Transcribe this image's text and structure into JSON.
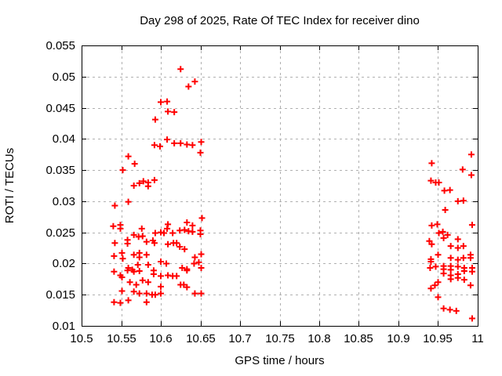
{
  "chart_data": {
    "type": "scatter",
    "title": "Day 298 of 2025, Rate Of TEC Index for receiver dino",
    "xlabel": "GPS time / hours",
    "ylabel": "ROTI / TECUs",
    "xlim": [
      10.5,
      11
    ],
    "ylim": [
      0.01,
      0.055
    ],
    "xticks": {
      "values": [
        10.5,
        10.55,
        10.6,
        10.65,
        10.7,
        10.75,
        10.8,
        10.85,
        10.9,
        10.95,
        11
      ],
      "labels": [
        "10.5",
        "10.55",
        "10.6",
        "10.65",
        "10.7",
        "10.75",
        "10.8",
        "10.85",
        "10.9",
        "10.95",
        "11"
      ]
    },
    "yticks": {
      "values": [
        0.01,
        0.015,
        0.02,
        0.025,
        0.03,
        0.035,
        0.04,
        0.045,
        0.05,
        0.055
      ],
      "labels": [
        "0.01",
        "0.015",
        "0.02",
        "0.025",
        "0.03",
        "0.035",
        "0.04",
        "0.045",
        "0.05",
        "0.055"
      ]
    },
    "grid": {
      "visible": true,
      "style": "dashed",
      "color": "#b0b0b0"
    },
    "legend": {
      "visible": false
    },
    "background": "#ffffff",
    "axis_color": "#000000",
    "series": [
      {
        "name": "ROTI",
        "marker": "plus",
        "color": "#ff0000",
        "points": [
          [
            10.625,
            0.0512
          ],
          [
            10.643,
            0.0492
          ],
          [
            10.635,
            0.0484
          ],
          [
            10.6,
            0.0459
          ],
          [
            10.608,
            0.046
          ],
          [
            10.609,
            0.0444
          ],
          [
            10.617,
            0.0443
          ],
          [
            10.593,
            0.0431
          ],
          [
            10.608,
            0.0399
          ],
          [
            10.599,
            0.0388
          ],
          [
            10.592,
            0.039
          ],
          [
            10.617,
            0.0393
          ],
          [
            10.625,
            0.0393
          ],
          [
            10.633,
            0.0391
          ],
          [
            10.64,
            0.039
          ],
          [
            10.651,
            0.0395
          ],
          [
            10.65,
            0.0378
          ],
          [
            10.559,
            0.0372
          ],
          [
            10.567,
            0.036
          ],
          [
            10.552,
            0.035
          ],
          [
            10.566,
            0.0325
          ],
          [
            10.573,
            0.0329
          ],
          [
            10.578,
            0.0332
          ],
          [
            10.584,
            0.033
          ],
          [
            10.584,
            0.0324
          ],
          [
            10.592,
            0.0334
          ],
          [
            10.559,
            0.0299
          ],
          [
            10.542,
            0.0293
          ],
          [
            10.54,
            0.026
          ],
          [
            10.549,
            0.0262
          ],
          [
            10.549,
            0.0256
          ],
          [
            10.576,
            0.0256
          ],
          [
            10.566,
            0.0246
          ],
          [
            10.59,
            0.0237
          ],
          [
            10.593,
            0.0249
          ],
          [
            10.6,
            0.025
          ],
          [
            10.604,
            0.0249
          ],
          [
            10.609,
            0.0263
          ],
          [
            10.608,
            0.0256
          ],
          [
            10.615,
            0.0249
          ],
          [
            10.624,
            0.0253
          ],
          [
            10.63,
            0.0254
          ],
          [
            10.635,
            0.0252
          ],
          [
            10.633,
            0.0266
          ],
          [
            10.64,
            0.0261
          ],
          [
            10.64,
            0.0251
          ],
          [
            10.652,
            0.0273
          ],
          [
            10.65,
            0.0253
          ],
          [
            10.65,
            0.0247
          ],
          [
            10.542,
            0.0233
          ],
          [
            10.558,
            0.0238
          ],
          [
            10.558,
            0.0232
          ],
          [
            10.572,
            0.0243
          ],
          [
            10.577,
            0.0244
          ],
          [
            10.582,
            0.0235
          ],
          [
            10.592,
            0.0233
          ],
          [
            10.609,
            0.0231
          ],
          [
            10.616,
            0.0233
          ],
          [
            10.62,
            0.0233
          ],
          [
            10.624,
            0.0227
          ],
          [
            10.63,
            0.0223
          ],
          [
            10.541,
            0.0212
          ],
          [
            10.551,
            0.0217
          ],
          [
            10.552,
            0.0208
          ],
          [
            10.566,
            0.0214
          ],
          [
            10.573,
            0.0217
          ],
          [
            10.573,
            0.021
          ],
          [
            10.582,
            0.0214
          ],
          [
            10.643,
            0.021
          ],
          [
            10.651,
            0.0215
          ],
          [
            10.559,
            0.0193
          ],
          [
            10.564,
            0.019
          ],
          [
            10.571,
            0.0198
          ],
          [
            10.584,
            0.0198
          ],
          [
            10.6,
            0.0203
          ],
          [
            10.607,
            0.02
          ],
          [
            10.627,
            0.0193
          ],
          [
            10.633,
            0.0191
          ],
          [
            10.642,
            0.02
          ],
          [
            10.648,
            0.0202
          ],
          [
            10.651,
            0.0193
          ],
          [
            10.541,
            0.0187
          ],
          [
            10.549,
            0.0181
          ],
          [
            10.551,
            0.0178
          ],
          [
            10.558,
            0.0189
          ],
          [
            10.566,
            0.0187
          ],
          [
            10.573,
            0.0188
          ],
          [
            10.591,
            0.0189
          ],
          [
            10.591,
            0.0183
          ],
          [
            10.6,
            0.018
          ],
          [
            10.609,
            0.0181
          ],
          [
            10.615,
            0.018
          ],
          [
            10.62,
            0.018
          ],
          [
            10.633,
            0.0189
          ],
          [
            10.561,
            0.017
          ],
          [
            10.569,
            0.0166
          ],
          [
            10.577,
            0.0173
          ],
          [
            10.584,
            0.017
          ],
          [
            10.6,
            0.0163
          ],
          [
            10.625,
            0.0166
          ],
          [
            10.629,
            0.0166
          ],
          [
            10.633,
            0.0162
          ],
          [
            10.551,
            0.0156
          ],
          [
            10.566,
            0.0155
          ],
          [
            10.573,
            0.0152
          ],
          [
            10.582,
            0.0152
          ],
          [
            10.589,
            0.015
          ],
          [
            10.593,
            0.015
          ],
          [
            10.6,
            0.0152
          ],
          [
            10.643,
            0.0152
          ],
          [
            10.651,
            0.0152
          ],
          [
            10.541,
            0.0138
          ],
          [
            10.549,
            0.0137
          ],
          [
            10.559,
            0.0141
          ],
          [
            10.582,
            0.0138
          ],
          [
            10.992,
            0.0375
          ],
          [
            10.942,
            0.0361
          ],
          [
            10.981,
            0.0351
          ],
          [
            10.992,
            0.0342
          ],
          [
            10.941,
            0.0333
          ],
          [
            10.947,
            0.033
          ],
          [
            10.951,
            0.033
          ],
          [
            10.958,
            0.0317
          ],
          [
            10.965,
            0.0318
          ],
          [
            10.975,
            0.03
          ],
          [
            10.982,
            0.0301
          ],
          [
            10.959,
            0.0286
          ],
          [
            10.942,
            0.0261
          ],
          [
            10.949,
            0.0263
          ],
          [
            10.993,
            0.0262
          ],
          [
            10.951,
            0.0249
          ],
          [
            10.956,
            0.0251
          ],
          [
            10.962,
            0.0246
          ],
          [
            10.957,
            0.0241
          ],
          [
            10.975,
            0.0239
          ],
          [
            10.939,
            0.0236
          ],
          [
            10.942,
            0.0231
          ],
          [
            10.966,
            0.0228
          ],
          [
            10.975,
            0.0225
          ],
          [
            10.982,
            0.0228
          ],
          [
            10.95,
            0.0214
          ],
          [
            10.941,
            0.0207
          ],
          [
            10.941,
            0.0203
          ],
          [
            10.966,
            0.0209
          ],
          [
            10.975,
            0.0206
          ],
          [
            10.982,
            0.0209
          ],
          [
            10.991,
            0.0214
          ],
          [
            10.991,
            0.0209
          ],
          [
            10.94,
            0.0193
          ],
          [
            10.947,
            0.0195
          ],
          [
            10.957,
            0.0196
          ],
          [
            10.957,
            0.0191
          ],
          [
            10.966,
            0.0196
          ],
          [
            10.966,
            0.019
          ],
          [
            10.975,
            0.0195
          ],
          [
            10.983,
            0.0193
          ],
          [
            10.983,
            0.0188
          ],
          [
            10.993,
            0.0193
          ],
          [
            10.993,
            0.0187
          ],
          [
            10.957,
            0.0184
          ],
          [
            10.966,
            0.0181
          ],
          [
            10.975,
            0.0183
          ],
          [
            10.975,
            0.0177
          ],
          [
            10.966,
            0.0175
          ],
          [
            10.983,
            0.0174
          ],
          [
            10.95,
            0.017
          ],
          [
            10.946,
            0.0165
          ],
          [
            10.991,
            0.0165
          ],
          [
            10.941,
            0.016
          ],
          [
            10.95,
            0.0146
          ],
          [
            10.957,
            0.0128
          ],
          [
            10.965,
            0.0126
          ],
          [
            10.973,
            0.0124
          ],
          [
            10.993,
            0.0112
          ]
        ]
      }
    ]
  }
}
